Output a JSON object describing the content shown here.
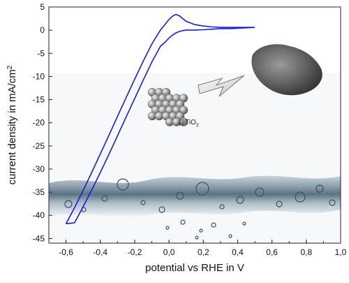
{
  "chart_data": {
    "type": "line",
    "title": "",
    "xlabel": "potential vs RHE in V",
    "ylabel_main": "current density in mA/cm",
    "ylabel_sup": "2",
    "xlim": [
      -0.7,
      1.0
    ],
    "ylim": [
      -46,
      5
    ],
    "x_ticks": [
      -0.6,
      -0.4,
      -0.2,
      0.0,
      0.2,
      0.4,
      0.6,
      0.8,
      1.0
    ],
    "x_tick_labels": [
      "-0,6",
      "-0,4",
      "-0,2",
      "0,0",
      "0,2",
      "0,4",
      "0,6",
      "0,8",
      "1,0"
    ],
    "y_ticks": [
      5,
      0,
      -5,
      -10,
      -15,
      -20,
      -25,
      -30,
      -35,
      -40,
      -45
    ],
    "y_tick_labels": [
      "5",
      "0",
      "-5",
      "-10",
      "-15",
      "-20",
      "-25",
      "-30",
      "-35",
      "-40",
      "-45"
    ],
    "grid": false,
    "legend": "none",
    "line_color": "#1a1adc",
    "series": [
      {
        "x": [
          -0.6,
          -0.55,
          -0.5,
          -0.45,
          -0.4,
          -0.35,
          -0.3,
          -0.25,
          -0.2,
          -0.15,
          -0.1,
          -0.05,
          0.0,
          0.02,
          0.04,
          0.06,
          0.08,
          0.1,
          0.15,
          0.2,
          0.25,
          0.3,
          0.35,
          0.4,
          0.45,
          0.5,
          0.45,
          0.4,
          0.35,
          0.3,
          0.25,
          0.2,
          0.15,
          0.1,
          0.08,
          0.06,
          0.04,
          0.02,
          0.0,
          -0.02,
          -0.05,
          -0.1,
          -0.15,
          -0.2,
          -0.25,
          -0.3,
          -0.35,
          -0.4,
          -0.45,
          -0.5,
          -0.55,
          -0.6
        ],
        "y": [
          -41.8,
          -38.3,
          -34.6,
          -30.7,
          -26.7,
          -22.7,
          -18.6,
          -14.6,
          -10.6,
          -6.7,
          -3.0,
          0.0,
          2.3,
          3.0,
          3.4,
          3.1,
          2.5,
          1.9,
          1.2,
          0.9,
          0.7,
          0.6,
          0.6,
          0.6,
          0.6,
          0.6,
          0.5,
          0.4,
          0.3,
          0.3,
          0.2,
          0.1,
          0.0,
          0.0,
          -0.1,
          -0.3,
          -0.6,
          -1.1,
          -1.7,
          -2.5,
          -3.5,
          -6.9,
          -10.8,
          -14.8,
          -18.8,
          -22.8,
          -26.8,
          -30.7,
          -34.5,
          -38.1,
          -41.6,
          -41.8
        ]
      }
    ],
    "annotations": [
      {
        "text_main": "@TiO",
        "text_sub": "2"
      }
    ]
  }
}
